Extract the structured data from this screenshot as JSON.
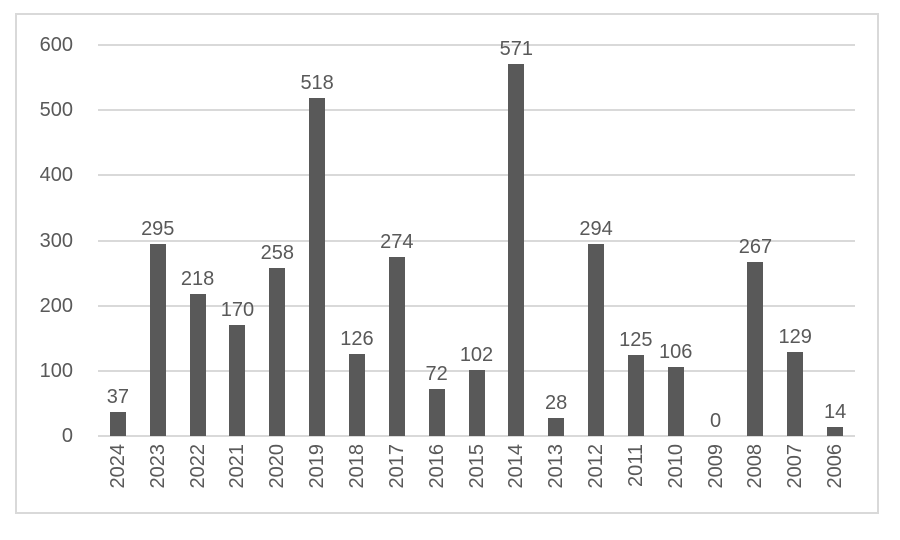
{
  "chart_data": {
    "type": "bar",
    "categories": [
      "2024",
      "2023",
      "2022",
      "2021",
      "2020",
      "2019",
      "2018",
      "2017",
      "2016",
      "2015",
      "2014",
      "2013",
      "2012",
      "2011",
      "2010",
      "2009",
      "2008",
      "2007",
      "2006"
    ],
    "values": [
      37,
      295,
      218,
      170,
      258,
      518,
      126,
      274,
      72,
      102,
      571,
      28,
      294,
      125,
      106,
      0,
      267,
      129,
      14
    ],
    "title": "",
    "xlabel": "",
    "ylabel": "",
    "ylim": [
      0,
      600
    ],
    "yticks": [
      0,
      100,
      200,
      300,
      400,
      500,
      600
    ],
    "grid": true,
    "legend": "none",
    "data_labels": "outside-end",
    "bar_color": "#595959",
    "gridline_color": "#d9d9d9",
    "tick_label_color": "#595959",
    "frame_border_color": "#d9d9d9",
    "background_color": "#ffffff"
  }
}
